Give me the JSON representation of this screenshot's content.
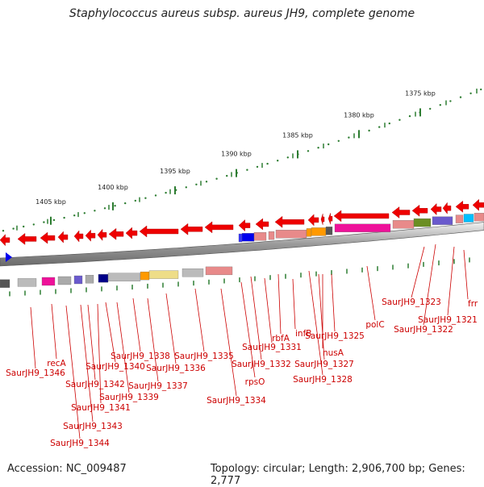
{
  "title": "Staphylococcus aureus subsp. aureus JH9, complete genome",
  "footer": {
    "accession": "Accession: NC_009487",
    "topology": "Topology: circular; Length: 2,906,700 bp; Genes: 2,777"
  },
  "scale_ticks": [
    "1375 kbp",
    "1380 kbp",
    "1385 kbp",
    "1390 kbp",
    "1395 kbp",
    "1400 kbp",
    "1405 kbp"
  ],
  "gene_labels": [
    "frr",
    "SaurJH9_1321",
    "SaurJH9_1322",
    "SaurJH9_1323",
    "polC",
    "SaurJH9_1325",
    "nusA",
    "SaurJH9_1327",
    "SaurJH9_1328",
    "infB",
    "rbfA",
    "SaurJH9_1331",
    "SaurJH9_1332",
    "rpsO",
    "SaurJH9_1334",
    "SaurJH9_1335",
    "SaurJH9_1336",
    "SaurJH9_1337",
    "SaurJH9_1338",
    "SaurJH9_1339",
    "SaurJH9_1340",
    "SaurJH9_1341",
    "SaurJH9_1342",
    "SaurJH9_1343",
    "SaurJH9_1344",
    "recA",
    "SaurJH9_1346"
  ],
  "colors": {
    "arrow": "#ee0000",
    "label": "#cc0000",
    "tick": "#2e7d32"
  }
}
